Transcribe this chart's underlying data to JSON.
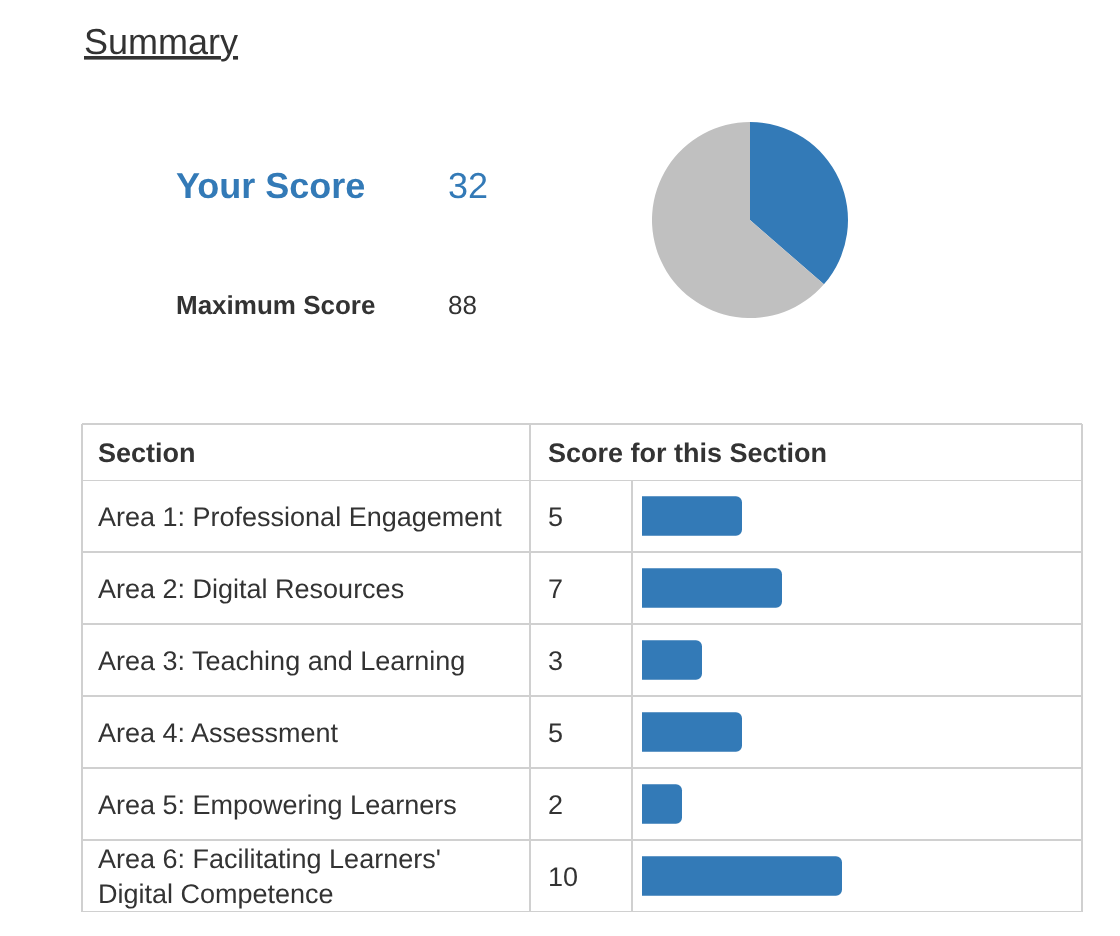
{
  "chart_data": [
    {
      "type": "other",
      "title": "Summary",
      "categories": [
        "Your Score",
        "Maximum Score"
      ],
      "values": [
        32,
        88
      ],
      "colors": [
        "#337ab7",
        "#333333"
      ],
      "data_labels": true
    },
    {
      "type": "pie",
      "categories": [
        null,
        null
      ],
      "values": [
        36.4,
        63.6
      ],
      "colors": [
        "#337ab7",
        "#c0c0c0"
      ]
    },
    {
      "type": "bar",
      "orientation": "horizontal",
      "ylabel": "Section",
      "xlabel": "Score for this Section",
      "categories": [
        "Area 1: Professional Engagement",
        "Area 2: Digital Resources",
        "Area 3: Teaching and Learning",
        "Area 4: Assessment",
        "Area 5: Empowering Learners",
        "Area 6: Facilitating Learners' Digital Competence"
      ],
      "values": [
        5,
        7,
        3,
        5,
        2,
        10
      ],
      "color": "#337ab7",
      "xlim": [
        0,
        22
      ],
      "data_labels": true,
      "tick_labels": "y"
    }
  ]
}
